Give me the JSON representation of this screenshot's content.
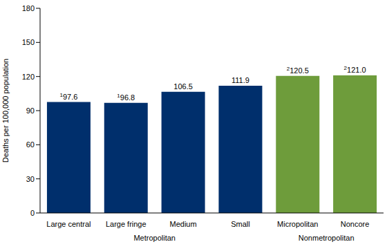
{
  "chart_data": {
    "type": "bar",
    "y_label": "Deaths per 100,000 population",
    "categories": [
      "Large central",
      "Large fringe",
      "Medium",
      "Small",
      "Micropolitan",
      "Noncore"
    ],
    "values": [
      97.6,
      96.8,
      106.5,
      111.9,
      120.5,
      121.0
    ],
    "value_labels": [
      "97.6",
      "96.8",
      "106.5",
      "111.9",
      "120.5",
      "121.0"
    ],
    "footnotes": [
      "1",
      "1",
      null,
      null,
      "2",
      "2"
    ],
    "groups": [
      "Metropolitan",
      "Metropolitan",
      "Metropolitan",
      "Metropolitan",
      "Nonmetropolitan",
      "Nonmetropolitan"
    ],
    "colors": [
      "#002f6c",
      "#002f6c",
      "#002f6c",
      "#002f6c",
      "#6e9c3b",
      "#6e9c3b"
    ],
    "ylim": [
      0,
      180
    ],
    "yticks": [
      0,
      30,
      60,
      90,
      120,
      150,
      180
    ],
    "grid": false,
    "data_labels": true
  }
}
